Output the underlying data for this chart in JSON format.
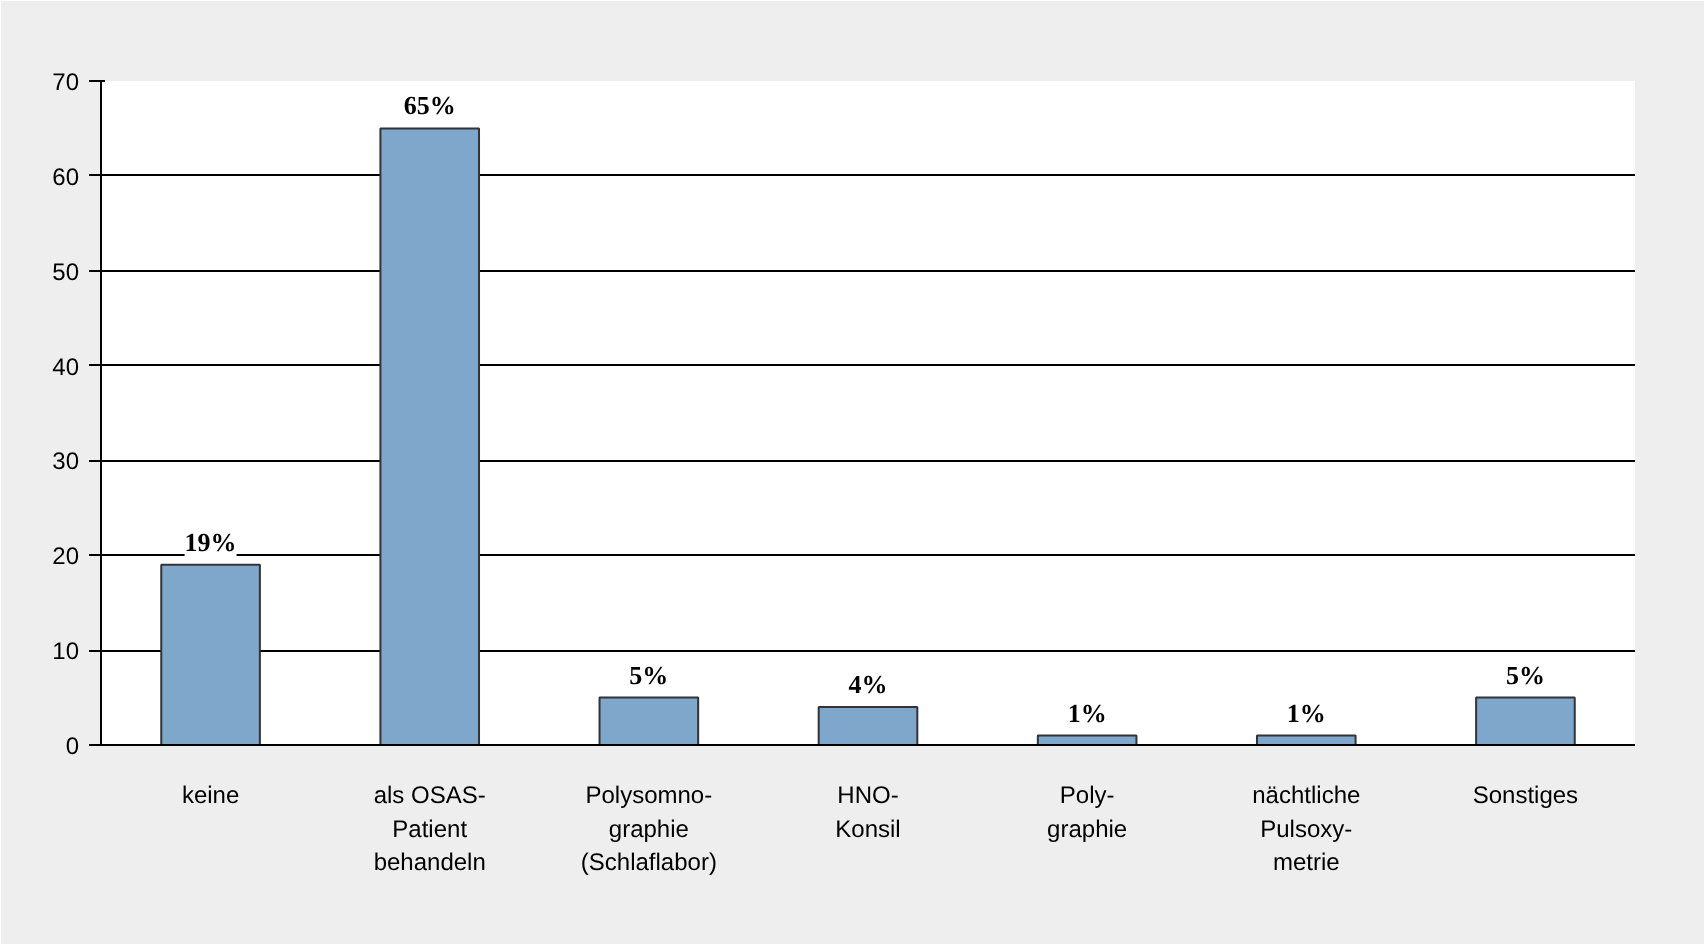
{
  "chart_data": {
    "type": "bar",
    "categories": [
      "keine",
      "als OSAS-\nPatient\nbehandeln",
      "Polysomno-\ngraphie\n(Schlaflabor)",
      "HNO-\nKonsil",
      "Poly-\ngraphie",
      "nächtliche\nPulsoxy-\nmetrie",
      "Sonstiges"
    ],
    "values": [
      19,
      65,
      5,
      4,
      1,
      1,
      5
    ],
    "value_labels": [
      "19%",
      "65%",
      "5%",
      "4%",
      "1%",
      "1%",
      "5%"
    ],
    "color": "#7fa7cc",
    "ylim": [
      0,
      70
    ],
    "yticks": [
      0,
      10,
      20,
      30,
      40,
      50,
      60,
      70
    ],
    "grid": "y"
  }
}
